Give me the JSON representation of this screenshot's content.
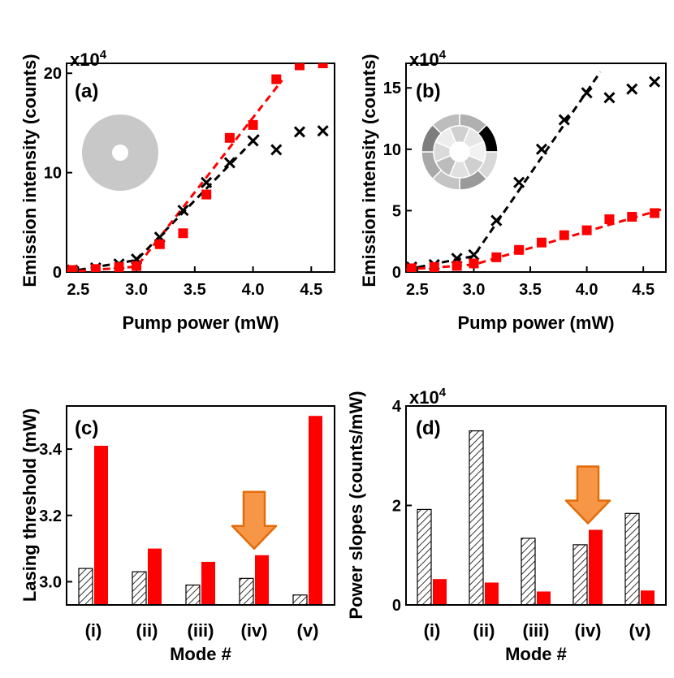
{
  "colors": {
    "red": "#ff0000",
    "black": "#000000",
    "arrow_fill": "#f79646",
    "arrow_stroke": "#e36c0a",
    "ring_gray": "#c8c8c8"
  },
  "chart_data": [
    {
      "id": "a",
      "type": "scatter",
      "panel_label": "(a)",
      "title": "",
      "xlabel": "Pump power (mW)",
      "ylabel": "Emission intensity (counts)",
      "scale_label": "x10",
      "scale_exp": "4",
      "xlim": [
        2.4,
        4.7
      ],
      "ylim": [
        0,
        21
      ],
      "xticks": [
        2.5,
        3.0,
        3.5,
        4.0,
        4.5
      ],
      "xtick_labels": [
        "2.5",
        "3.0",
        "3.5",
        "4.0",
        "4.5"
      ],
      "yticks": [
        0,
        10,
        20
      ],
      "ytick_labels": [
        "0",
        "10",
        "20"
      ],
      "inset_icon": "uniform-ring-icon",
      "series": [
        {
          "name": "black",
          "marker": "x",
          "color": "#000000",
          "x": [
            2.45,
            2.65,
            2.85,
            3.0,
            3.2,
            3.4,
            3.6,
            3.8,
            4.0,
            4.2,
            4.4,
            4.6
          ],
          "y": [
            0.2,
            0.4,
            0.8,
            1.3,
            3.5,
            6.2,
            9.0,
            11.0,
            13.2,
            12.3,
            14.1,
            14.2
          ],
          "fit": {
            "x": [
              2.4,
              3.0,
              4.05
            ],
            "y": [
              0.0,
              1.2,
              13.8
            ]
          }
        },
        {
          "name": "red",
          "marker": "square",
          "color": "#ff0000",
          "x": [
            2.45,
            2.65,
            2.85,
            3.0,
            3.2,
            3.4,
            3.6,
            3.8,
            4.0,
            4.2,
            4.4,
            4.6
          ],
          "y": [
            0.2,
            0.3,
            0.5,
            0.6,
            2.8,
            3.9,
            7.8,
            13.5,
            14.8,
            19.4,
            20.8,
            21.0
          ],
          "fit": {
            "x": [
              2.4,
              2.95,
              3.0,
              4.25
            ],
            "y": [
              0.0,
              0.5,
              0.5,
              19.3
            ]
          }
        }
      ]
    },
    {
      "id": "b",
      "type": "scatter",
      "panel_label": "(b)",
      "title": "",
      "xlabel": "Pump power (mW)",
      "ylabel": "Emission intensity (counts)",
      "scale_label": "x10",
      "scale_exp": "4",
      "xlim": [
        2.4,
        4.7
      ],
      "ylim": [
        0,
        17
      ],
      "xticks": [
        2.5,
        3.0,
        3.5,
        4.0,
        4.5
      ],
      "xtick_labels": [
        "2.5",
        "3.0",
        "3.5",
        "4.0",
        "4.5"
      ],
      "yticks": [
        0,
        5,
        10,
        15
      ],
      "ytick_labels": [
        "0",
        "5",
        "10",
        "15"
      ],
      "inset_icon": "segmented-ring-icon",
      "series": [
        {
          "name": "black",
          "marker": "x",
          "color": "#000000",
          "x": [
            2.45,
            2.65,
            2.85,
            3.0,
            3.2,
            3.4,
            3.6,
            3.8,
            4.0,
            4.2,
            4.4,
            4.6
          ],
          "y": [
            0.4,
            0.6,
            1.1,
            1.4,
            4.2,
            7.3,
            10.0,
            12.4,
            14.6,
            14.2,
            14.9,
            15.5
          ],
          "fit": {
            "x": [
              2.4,
              3.0,
              4.12
            ],
            "y": [
              0.2,
              1.3,
              16.3
            ]
          }
        },
        {
          "name": "red",
          "marker": "square",
          "color": "#ff0000",
          "x": [
            2.45,
            2.65,
            2.85,
            3.0,
            3.2,
            3.4,
            3.6,
            3.8,
            4.0,
            4.2,
            4.4,
            4.6
          ],
          "y": [
            0.3,
            0.4,
            0.5,
            0.7,
            1.2,
            1.8,
            2.4,
            3.0,
            3.4,
            4.3,
            4.5,
            4.8
          ],
          "fit": {
            "x": [
              2.4,
              3.0,
              4.7
            ],
            "y": [
              0.2,
              0.6,
              5.2
            ]
          }
        }
      ]
    },
    {
      "id": "c",
      "type": "bar",
      "panel_label": "(c)",
      "title": "",
      "xlabel": "Mode #",
      "ylabel": "Lasing threshold (mW)",
      "categories": [
        "(i)",
        "(ii)",
        "(iii)",
        "(iv)",
        "(v)"
      ],
      "ylim": [
        2.93,
        3.53
      ],
      "yticks": [
        3.0,
        3.2,
        3.4
      ],
      "ytick_labels": [
        "3.0",
        "3.2",
        "3.4"
      ],
      "arrow_category": "(iv)",
      "series": [
        {
          "name": "uniform",
          "style": "hatched",
          "values": [
            3.04,
            3.03,
            2.99,
            3.01,
            2.96
          ]
        },
        {
          "name": "segmented",
          "style": "red",
          "values": [
            3.41,
            3.1,
            3.06,
            3.08,
            3.5
          ]
        }
      ]
    },
    {
      "id": "d",
      "type": "bar",
      "panel_label": "(d)",
      "title": "",
      "xlabel": "Mode #",
      "ylabel": "Power slopes (counts/mW)",
      "scale_label": "x10",
      "scale_exp": "4",
      "categories": [
        "(i)",
        "(ii)",
        "(iii)",
        "(iv)",
        "(v)"
      ],
      "ylim": [
        0,
        4
      ],
      "yticks": [
        0,
        2,
        4
      ],
      "ytick_labels": [
        "0",
        "2",
        "4"
      ],
      "arrow_category": "(iv)",
      "series": [
        {
          "name": "uniform",
          "style": "hatched",
          "values": [
            1.92,
            3.5,
            1.34,
            1.21,
            1.84
          ]
        },
        {
          "name": "segmented",
          "style": "red",
          "values": [
            0.52,
            0.45,
            0.27,
            1.51,
            0.29
          ]
        }
      ]
    }
  ]
}
